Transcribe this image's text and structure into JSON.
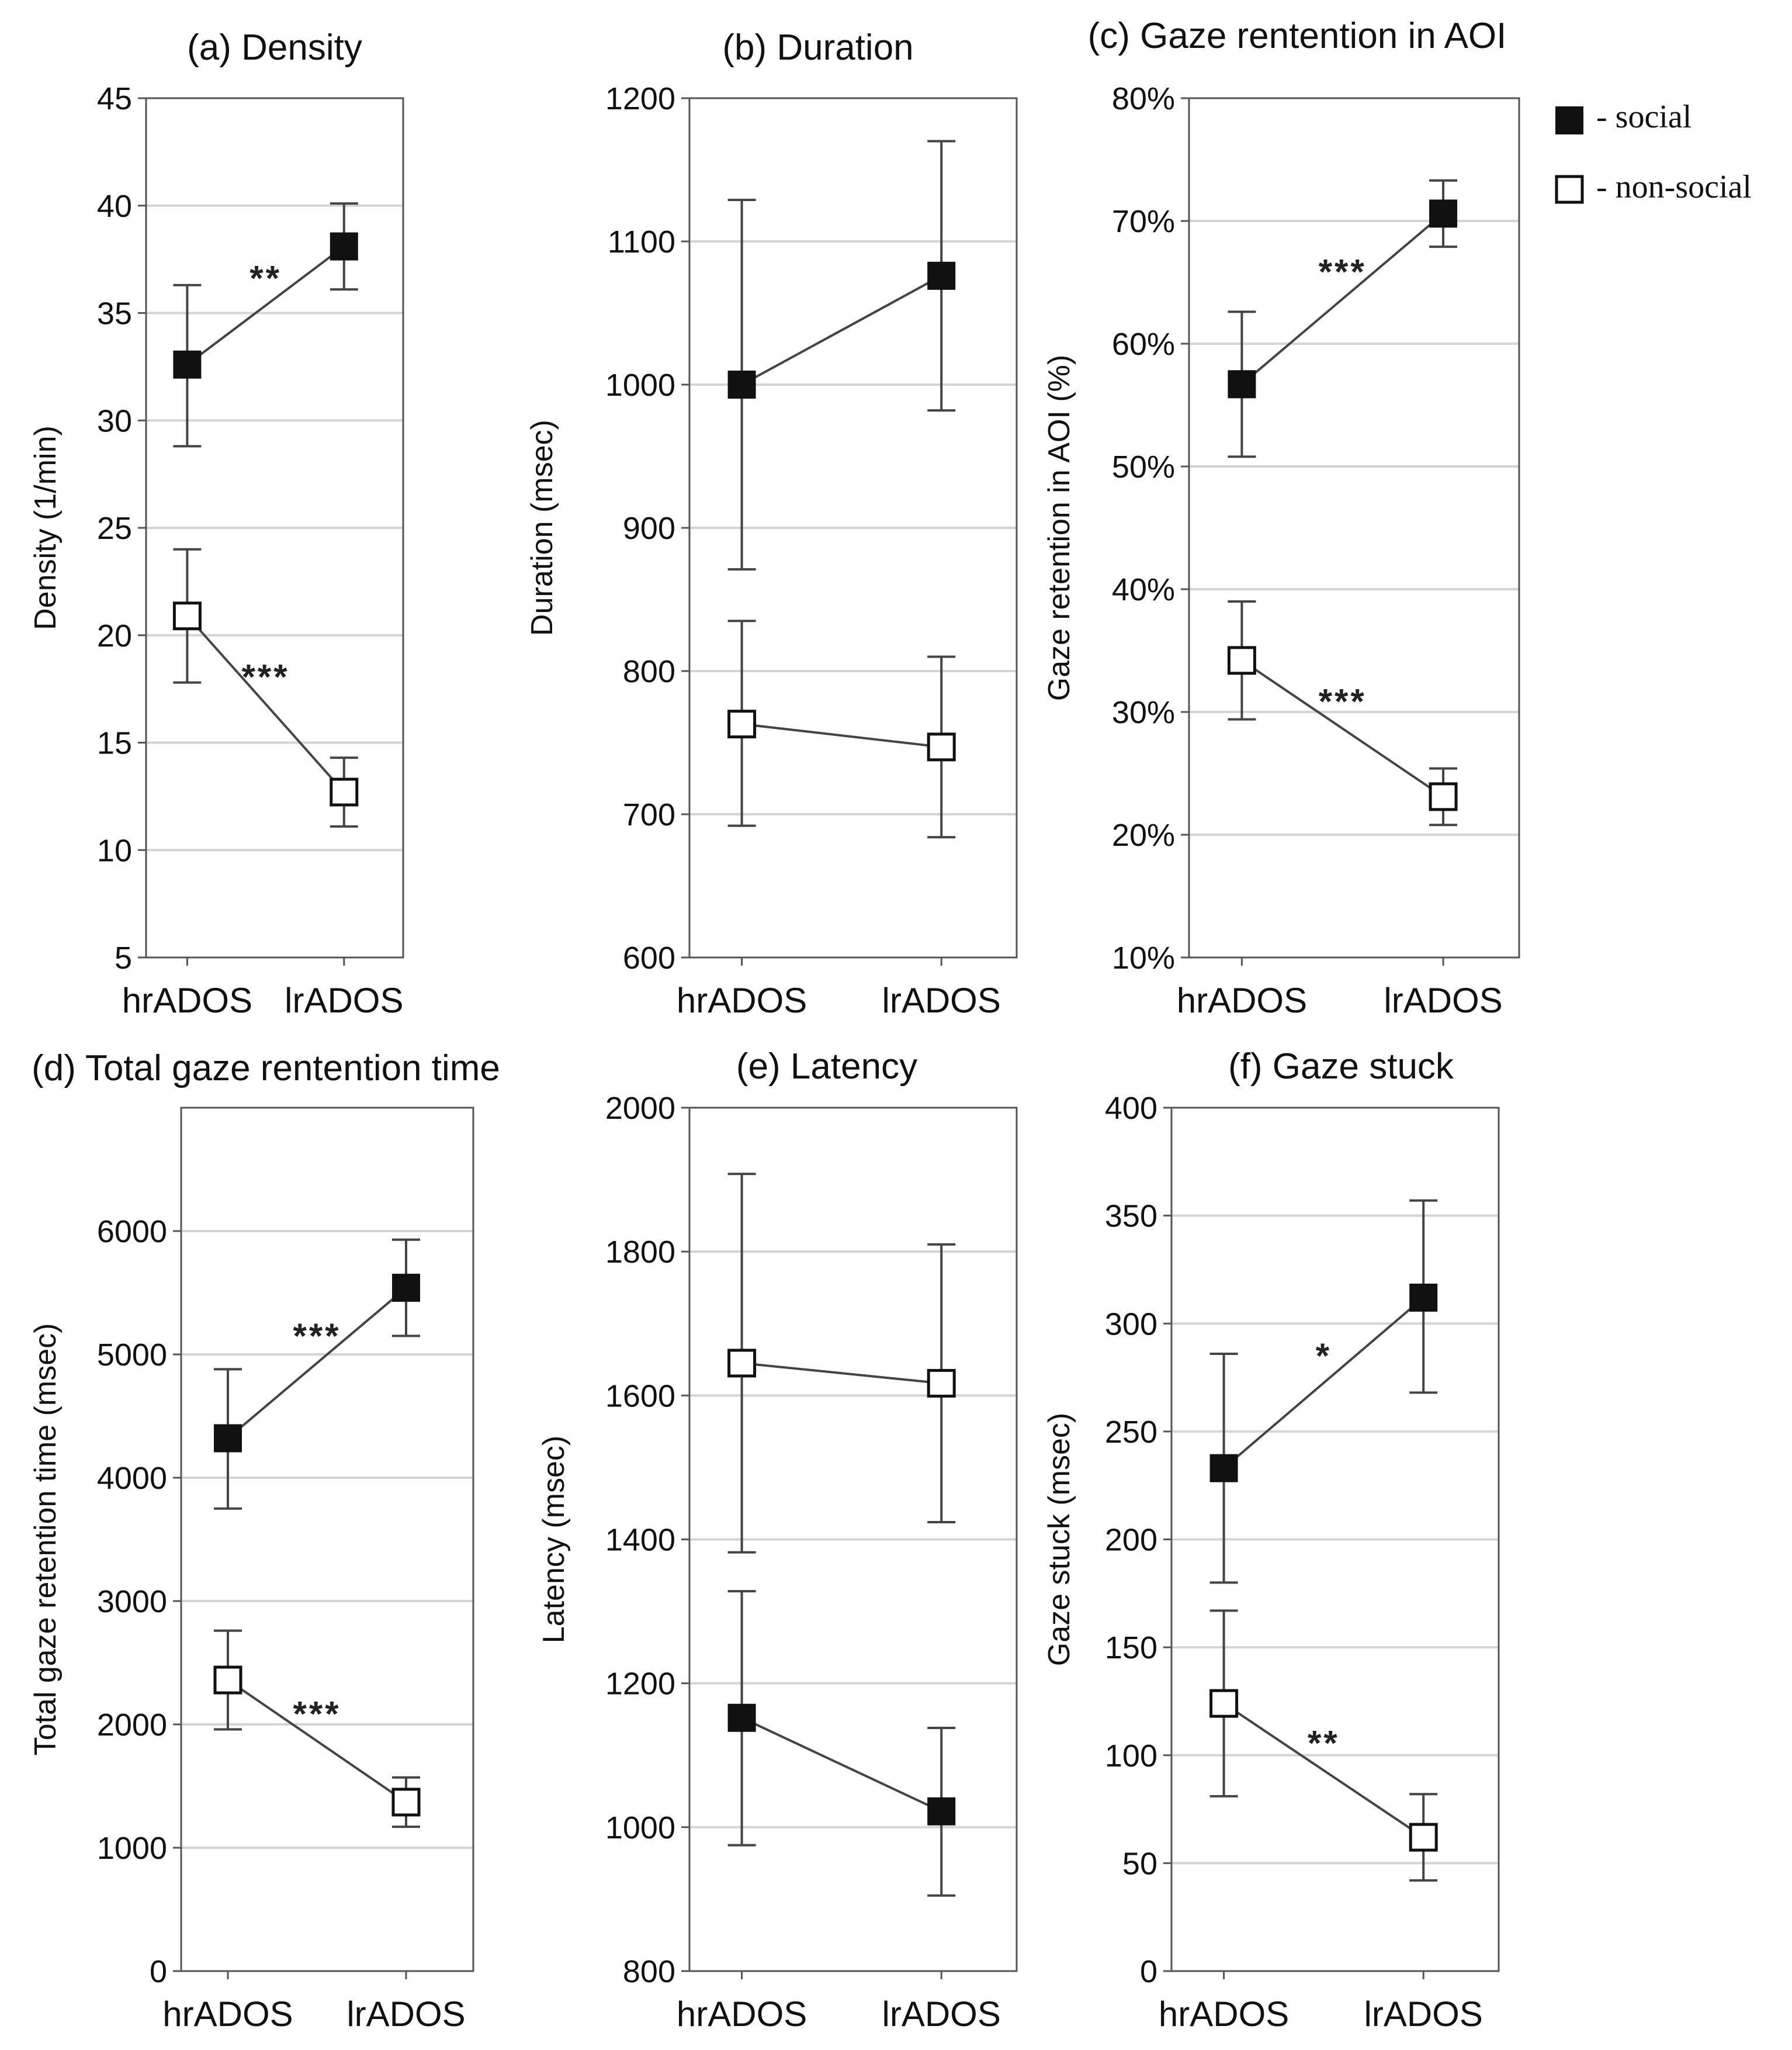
{
  "chart_data": [
    {
      "type": "line",
      "id": "a",
      "title": "(a) Density",
      "ylabel": "Density (1/min)",
      "categories": [
        "hrADOS",
        "lrADOS"
      ],
      "ylim": [
        5,
        45
      ],
      "yticks": [
        5,
        10,
        15,
        20,
        25,
        30,
        35,
        40,
        45
      ],
      "ytick_labels": [
        "5",
        "10",
        "15",
        "20",
        "25",
        "30",
        "35",
        "40",
        "45"
      ],
      "series": [
        {
          "name": "- social",
          "marker": "filled",
          "values": [
            32.6,
            38.1
          ],
          "lower": [
            28.8,
            36.1
          ],
          "upper": [
            36.3,
            40.1
          ],
          "significance": "**"
        },
        {
          "name": "- non-social",
          "marker": "open",
          "values": [
            20.9,
            12.7
          ],
          "lower": [
            17.8,
            11.1
          ],
          "upper": [
            24.0,
            14.3
          ],
          "significance": "***"
        }
      ]
    },
    {
      "type": "line",
      "id": "b",
      "title": "(b) Duration",
      "ylabel": "Duration (msec)",
      "categories": [
        "hrADOS",
        "lrADOS"
      ],
      "ylim": [
        600,
        1200
      ],
      "yticks": [
        600,
        700,
        800,
        900,
        1000,
        1100,
        1200
      ],
      "ytick_labels": [
        "600",
        "700",
        "800",
        "900",
        "1000",
        "1100",
        "1200"
      ],
      "series": [
        {
          "name": "- social",
          "marker": "filled",
          "values": [
            1000,
            1076
          ],
          "lower": [
            871,
            982
          ],
          "upper": [
            1129,
            1170
          ],
          "significance": ""
        },
        {
          "name": "- non-social",
          "marker": "open",
          "values": [
            763,
            747
          ],
          "lower": [
            692,
            684
          ],
          "upper": [
            835,
            810
          ],
          "significance": ""
        }
      ]
    },
    {
      "type": "line",
      "id": "c",
      "title": "(c) Gaze rentention in AOI",
      "ylabel": "Gaze retention in AOI (%)",
      "categories": [
        "hrADOS",
        "lrADOS"
      ],
      "ylim": [
        10,
        80
      ],
      "yticks": [
        10,
        20,
        30,
        40,
        50,
        60,
        70,
        80
      ],
      "ytick_labels": [
        "10%",
        "20%",
        "30%",
        "40%",
        "50%",
        "60%",
        "70%",
        "80%"
      ],
      "series": [
        {
          "name": "- social",
          "marker": "filled",
          "values": [
            56.7,
            70.6
          ],
          "lower": [
            50.8,
            67.9
          ],
          "upper": [
            62.6,
            73.3
          ],
          "significance": "***"
        },
        {
          "name": "- non-social",
          "marker": "open",
          "values": [
            34.2,
            23.1
          ],
          "lower": [
            29.4,
            20.8
          ],
          "upper": [
            39.0,
            25.4
          ],
          "significance": "***"
        }
      ]
    },
    {
      "type": "line",
      "id": "d",
      "title": "(d) Total gaze rentention time",
      "ylabel": "Total gaze retention time (msec)",
      "categories": [
        "hrADOS",
        "lrADOS"
      ],
      "ylim": [
        0,
        7000
      ],
      "yticks": [
        0,
        1000,
        2000,
        3000,
        4000,
        5000,
        6000
      ],
      "ytick_labels": [
        "0",
        "1000",
        "2000",
        "3000",
        "4000",
        "5000",
        "6000"
      ],
      "series": [
        {
          "name": "- social",
          "marker": "filled",
          "values": [
            4320,
            5540
          ],
          "lower": [
            3750,
            5150
          ],
          "upper": [
            4880,
            5930
          ],
          "significance": "***"
        },
        {
          "name": "- non-social",
          "marker": "open",
          "values": [
            2360,
            1370
          ],
          "lower": [
            1960,
            1170
          ],
          "upper": [
            2760,
            1570
          ],
          "significance": "***"
        }
      ]
    },
    {
      "type": "line",
      "id": "e",
      "title": "(e) Latency",
      "ylabel": "Latency (msec)",
      "categories": [
        "hrADOS",
        "lrADOS"
      ],
      "ylim": [
        800,
        2000
      ],
      "yticks": [
        800,
        1000,
        1200,
        1400,
        1600,
        1800,
        2000
      ],
      "ytick_labels": [
        "800",
        "1000",
        "1200",
        "1400",
        "1600",
        "1800",
        "2000"
      ],
      "series": [
        {
          "name": "- social",
          "marker": "filled",
          "values": [
            1152,
            1022
          ],
          "lower": [
            975,
            905
          ],
          "upper": [
            1328,
            1138
          ],
          "significance": ""
        },
        {
          "name": "- non-social",
          "marker": "open",
          "values": [
            1645,
            1617
          ],
          "lower": [
            1382,
            1424
          ],
          "upper": [
            1908,
            1810
          ],
          "significance": ""
        }
      ]
    },
    {
      "type": "line",
      "id": "f",
      "title": "(f) Gaze stuck",
      "ylabel": "Gaze stuck (msec)",
      "categories": [
        "hrADOS",
        "lrADOS"
      ],
      "ylim": [
        0,
        400
      ],
      "yticks": [
        0,
        50,
        100,
        150,
        200,
        250,
        300,
        350,
        400
      ],
      "ytick_labels": [
        "0",
        "50",
        "100",
        "150",
        "200",
        "250",
        "300",
        "350",
        "400"
      ],
      "series": [
        {
          "name": "- social",
          "marker": "filled",
          "values": [
            233,
            312
          ],
          "lower": [
            180,
            268
          ],
          "upper": [
            286,
            357
          ],
          "significance": "*"
        },
        {
          "name": "- non-social",
          "marker": "open",
          "values": [
            124,
            62
          ],
          "lower": [
            81,
            42
          ],
          "upper": [
            167,
            82
          ],
          "significance": "**"
        }
      ]
    }
  ],
  "legend": {
    "placement": "top-right",
    "items": [
      {
        "marker": "filled",
        "label": "- social"
      },
      {
        "marker": "open",
        "label": "- non-social"
      }
    ]
  }
}
